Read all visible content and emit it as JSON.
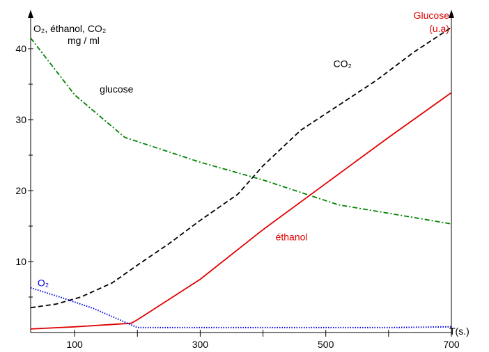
{
  "chart_data": {
    "type": "line",
    "xlabel": "T(s.)",
    "ylabel_left": [
      "O₂, éthanol, CO₂",
      "mg / ml"
    ],
    "ylabel_right": [
      "Glucose",
      "(u.a)"
    ],
    "xlim": [
      30,
      700
    ],
    "ylim": [
      0,
      43
    ],
    "x_ticks": [
      100,
      300,
      500,
      700
    ],
    "x_minor_ticks": [
      200,
      400,
      600
    ],
    "y_ticks": [
      10,
      20,
      30,
      40
    ],
    "y_minor_ticks": [
      5,
      15,
      25,
      35
    ],
    "grid": false,
    "series": [
      {
        "name": "glucose",
        "color": "#008000",
        "style": "dashdot",
        "x": [
          30,
          100,
          180,
          300,
          400,
          520,
          600,
          700
        ],
        "y": [
          41.5,
          33.5,
          27.5,
          24,
          21.5,
          18,
          16.8,
          15.3
        ]
      },
      {
        "name": "CO₂",
        "color": "#000000",
        "style": "dashed",
        "x": [
          30,
          70,
          110,
          160,
          200,
          250,
          300,
          360,
          400,
          460,
          520,
          580,
          640,
          700
        ],
        "y": [
          3.5,
          4,
          5,
          7,
          9.5,
          12.5,
          15.8,
          19.5,
          23.5,
          28.5,
          32,
          35.5,
          39.5,
          43
        ]
      },
      {
        "name": "éthanol",
        "color": "#e00000",
        "style": "solid",
        "x": [
          30,
          100,
          190,
          200,
          300,
          400,
          500,
          600,
          700
        ],
        "y": [
          0.5,
          0.8,
          1.3,
          1.8,
          7.5,
          14.5,
          21,
          27.5,
          33.8
        ]
      },
      {
        "name": "O₂",
        "color": "#0000e0",
        "style": "dotted",
        "x": [
          30,
          80,
          130,
          200,
          300,
          400,
          500,
          600,
          700
        ],
        "y": [
          6.3,
          4.9,
          3.4,
          0.7,
          0.7,
          0.7,
          0.7,
          0.7,
          0.8
        ]
      }
    ],
    "annotations": [
      {
        "text": "glucose",
        "x": 140,
        "y": 33.8,
        "color": "#000000",
        "size": 14
      },
      {
        "text": "CO₂",
        "x": 512,
        "y": 37.4,
        "color": "#000000",
        "size": 14
      },
      {
        "text": "éthanol",
        "x": 420,
        "y": 13,
        "color": "#e00000",
        "size": 14
      },
      {
        "text": "O₂",
        "x": 41,
        "y": 6.5,
        "color": "#0000e0",
        "size": 18
      }
    ]
  }
}
